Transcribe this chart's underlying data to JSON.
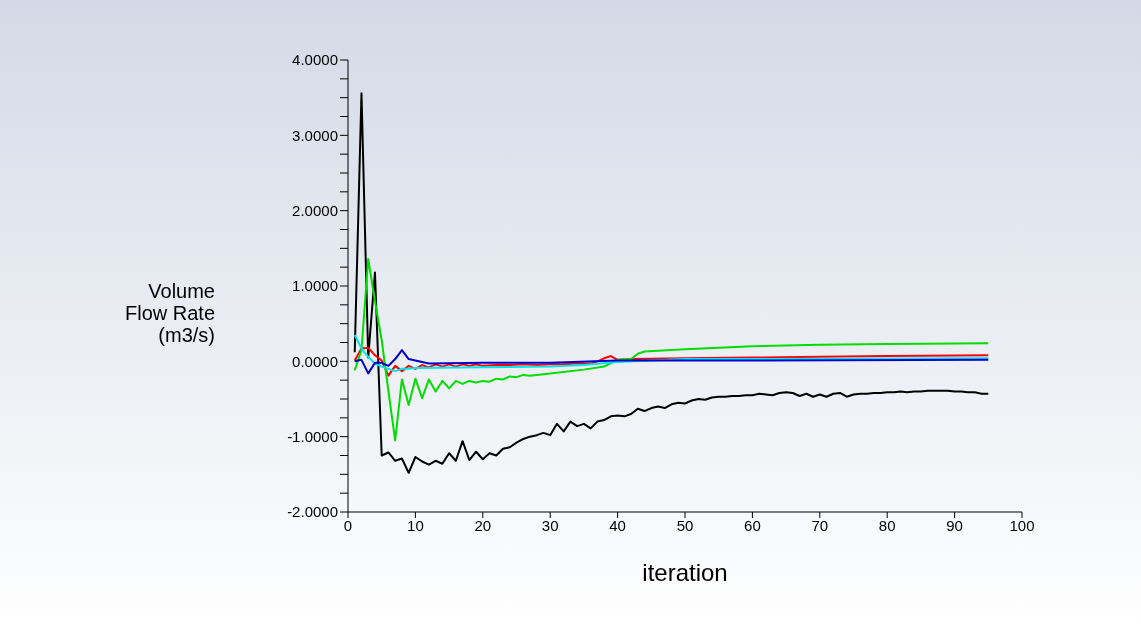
{
  "chart_data": {
    "type": "line",
    "xlabel": "iteration",
    "ylabel": "Volume Flow Rate (m3/s)",
    "xlim": [
      0,
      100
    ],
    "xticks": [
      0,
      10,
      20,
      30,
      40,
      50,
      60,
      70,
      80,
      90,
      100
    ],
    "ylim": [
      -2,
      4
    ],
    "yticks": [
      {
        "value": 4,
        "label": "4.0000"
      },
      {
        "value": 3.75,
        "label": null
      },
      {
        "value": 3.5,
        "label": null
      },
      {
        "value": 3.25,
        "label": null
      },
      {
        "value": 3,
        "label": "3.0000"
      },
      {
        "value": 2.75,
        "label": null
      },
      {
        "value": 2.5,
        "label": null
      },
      {
        "value": 2.25,
        "label": null
      },
      {
        "value": 2,
        "label": "2.0000"
      },
      {
        "value": 1.75,
        "label": null
      },
      {
        "value": 1.5,
        "label": null
      },
      {
        "value": 1.25,
        "label": null
      },
      {
        "value": 1,
        "label": "1.0000"
      },
      {
        "value": 0.75,
        "label": null
      },
      {
        "value": 0.5,
        "label": null
      },
      {
        "value": 0.25,
        "label": null
      },
      {
        "value": 0,
        "label": "0.0000"
      },
      {
        "value": -0.25,
        "label": null
      },
      {
        "value": -0.5,
        "label": null
      },
      {
        "value": -0.75,
        "label": null
      },
      {
        "value": -1,
        "label": "-1.0000"
      },
      {
        "value": -1.25,
        "label": null
      },
      {
        "value": -1.5,
        "label": null
      },
      {
        "value": -1.75,
        "label": null
      },
      {
        "value": -2,
        "label": "-2.0000"
      }
    ],
    "grid": false,
    "legend": false,
    "marker": "none",
    "line_style": "solid",
    "series": [
      {
        "color": "#000000",
        "x": [
          1,
          2,
          3,
          4,
          5,
          6,
          7,
          8,
          9,
          10,
          11,
          12,
          13,
          14,
          15,
          16,
          17,
          18,
          19,
          20,
          21,
          22,
          23,
          24,
          25,
          26,
          27,
          28,
          29,
          30,
          31,
          32,
          33,
          34,
          35,
          36,
          37,
          38,
          39,
          40,
          41,
          42,
          43,
          44,
          45,
          46,
          47,
          48,
          49,
          50,
          51,
          52,
          53,
          54,
          55,
          56,
          57,
          58,
          59,
          60,
          61,
          62,
          63,
          64,
          65,
          66,
          67,
          68,
          69,
          70,
          71,
          72,
          73,
          74,
          75,
          76,
          77,
          78,
          79,
          80,
          81,
          82,
          83,
          84,
          85,
          86,
          87,
          88,
          89,
          90,
          91,
          92,
          93,
          94,
          95
        ],
        "values": [
          0.12,
          3.56,
          0.05,
          1.18,
          -1.25,
          -1.21,
          -1.32,
          -1.29,
          -1.48,
          -1.27,
          -1.33,
          -1.37,
          -1.32,
          -1.36,
          -1.22,
          -1.32,
          -1.06,
          -1.31,
          -1.2,
          -1.3,
          -1.22,
          -1.25,
          -1.16,
          -1.14,
          -1.08,
          -1.03,
          -1.0,
          -0.98,
          -0.95,
          -0.98,
          -0.83,
          -0.93,
          -0.8,
          -0.86,
          -0.83,
          -0.89,
          -0.8,
          -0.78,
          -0.73,
          -0.72,
          -0.73,
          -0.7,
          -0.63,
          -0.66,
          -0.62,
          -0.6,
          -0.62,
          -0.57,
          -0.55,
          -0.56,
          -0.52,
          -0.5,
          -0.51,
          -0.48,
          -0.47,
          -0.47,
          -0.46,
          -0.46,
          -0.45,
          -0.45,
          -0.43,
          -0.44,
          -0.45,
          -0.42,
          -0.41,
          -0.42,
          -0.46,
          -0.43,
          -0.47,
          -0.44,
          -0.47,
          -0.43,
          -0.42,
          -0.47,
          -0.44,
          -0.43,
          -0.43,
          -0.42,
          -0.42,
          -0.41,
          -0.41,
          -0.4,
          -0.41,
          -0.4,
          -0.4,
          -0.39,
          -0.39,
          -0.39,
          -0.39,
          -0.4,
          -0.4,
          -0.41,
          -0.41,
          -0.43,
          -0.43
        ]
      },
      {
        "color": "#ff0000",
        "x": [
          1,
          2,
          3,
          4,
          5,
          6,
          7,
          8,
          9,
          10,
          11,
          12,
          13,
          14,
          15,
          16,
          17,
          18,
          19,
          20,
          22,
          24,
          26,
          28,
          30,
          32,
          34,
          36,
          37,
          38,
          39,
          40,
          42,
          50,
          60,
          70,
          80,
          95
        ],
        "values": [
          0.01,
          0.17,
          0.18,
          0.08,
          0.01,
          -0.19,
          -0.06,
          -0.13,
          -0.06,
          -0.1,
          -0.05,
          -0.08,
          -0.04,
          -0.07,
          -0.04,
          -0.07,
          -0.04,
          -0.06,
          -0.04,
          -0.06,
          -0.05,
          -0.05,
          -0.04,
          -0.05,
          -0.04,
          -0.04,
          -0.03,
          -0.03,
          0.0,
          0.04,
          0.07,
          0.02,
          0.03,
          0.04,
          0.05,
          0.06,
          0.07,
          0.08
        ]
      },
      {
        "color": "#00dd00",
        "x": [
          1,
          2,
          3,
          4,
          5,
          6,
          7,
          8,
          9,
          10,
          11,
          12,
          13,
          14,
          15,
          16,
          17,
          18,
          19,
          20,
          21,
          22,
          23,
          24,
          25,
          26,
          27,
          30,
          35,
          38,
          40,
          42,
          43,
          44,
          46,
          50,
          60,
          70,
          80,
          95
        ],
        "values": [
          -0.12,
          0.15,
          1.36,
          0.8,
          0.28,
          -0.4,
          -1.05,
          -0.24,
          -0.58,
          -0.23,
          -0.49,
          -0.24,
          -0.4,
          -0.26,
          -0.36,
          -0.26,
          -0.3,
          -0.26,
          -0.28,
          -0.26,
          -0.27,
          -0.23,
          -0.24,
          -0.2,
          -0.21,
          -0.18,
          -0.19,
          -0.16,
          -0.11,
          -0.07,
          0.02,
          0.03,
          0.1,
          0.13,
          0.14,
          0.16,
          0.2,
          0.22,
          0.23,
          0.24
        ]
      },
      {
        "color": "#00e5ee",
        "x": [
          1,
          2,
          3,
          4,
          5,
          6,
          7,
          8,
          9,
          10,
          20,
          30,
          35,
          40,
          50,
          95
        ],
        "values": [
          0.35,
          0.17,
          0.06,
          -0.03,
          -0.07,
          -0.1,
          -0.13,
          -0.1,
          -0.1,
          -0.09,
          -0.08,
          -0.07,
          -0.05,
          -0.01,
          0.03,
          0.04
        ]
      },
      {
        "color": "#0000cc",
        "x": [
          1,
          2,
          3,
          4,
          5,
          6,
          7,
          8,
          9,
          10,
          12,
          20,
          30,
          40,
          50,
          95
        ],
        "values": [
          0.0,
          0.02,
          -0.16,
          -0.02,
          -0.02,
          -0.06,
          0.03,
          0.15,
          0.03,
          0.01,
          -0.03,
          -0.02,
          -0.02,
          0.01,
          0.01,
          0.02
        ]
      }
    ]
  }
}
